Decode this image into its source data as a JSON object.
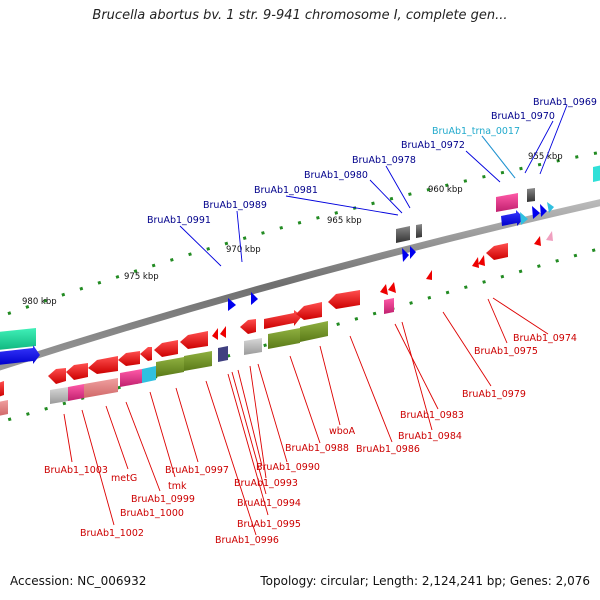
{
  "title": "Brucella abortus bv. 1 str. 9-941 chromosome I, complete gen...",
  "footer": {
    "accession": "Accession: NC_006932",
    "summary": "Topology: circular; Length: 2,124,241 bp; Genes: 2,076"
  },
  "tick_labels": [
    {
      "text": "955 kbp"
    },
    {
      "text": "960 kbp"
    },
    {
      "text": "965 kbp"
    },
    {
      "text": "970 kbp"
    },
    {
      "text": "975 kbp"
    },
    {
      "text": "980 kbp"
    }
  ],
  "gene_labels_top": [
    {
      "text": "BruAb1_0969",
      "color": "#00008b"
    },
    {
      "text": "BruAb1_0970",
      "color": "#00008b"
    },
    {
      "text": "BruAb1_trna_0017",
      "color": "#22aacc"
    },
    {
      "text": "BruAb1_0972",
      "color": "#00008b"
    },
    {
      "text": "BruAb1_0978",
      "color": "#00008b"
    },
    {
      "text": "BruAb1_0980",
      "color": "#00008b"
    },
    {
      "text": "BruAb1_0981",
      "color": "#00008b"
    },
    {
      "text": "BruAb1_0989",
      "color": "#00008b"
    },
    {
      "text": "BruAb1_0991",
      "color": "#00008b"
    }
  ],
  "gene_labels_bottom": [
    {
      "text": "BruAb1_0974",
      "color": "#cc0000"
    },
    {
      "text": "BruAb1_0975",
      "color": "#cc0000"
    },
    {
      "text": "BruAb1_0979",
      "color": "#cc0000"
    },
    {
      "text": "BruAb1_0983",
      "color": "#cc0000"
    },
    {
      "text": "BruAb1_0984",
      "color": "#cc0000"
    },
    {
      "text": "BruAb1_0986",
      "color": "#cc0000"
    },
    {
      "text": "wboA",
      "color": "#cc0000"
    },
    {
      "text": "BruAb1_0988",
      "color": "#cc0000"
    },
    {
      "text": "BruAb1_0990",
      "color": "#cc0000"
    },
    {
      "text": "BruAb1_0993",
      "color": "#cc0000"
    },
    {
      "text": "BruAb1_0994",
      "color": "#cc0000"
    },
    {
      "text": "BruAb1_0995",
      "color": "#cc0000"
    },
    {
      "text": "BruAb1_0996",
      "color": "#cc0000"
    },
    {
      "text": "BruAb1_0997",
      "color": "#cc0000"
    },
    {
      "text": "tmk",
      "color": "#cc0000"
    },
    {
      "text": "BruAb1_0999",
      "color": "#cc0000"
    },
    {
      "text": "BruAb1_1000",
      "color": "#cc0000"
    },
    {
      "text": "metG",
      "color": "#cc0000"
    },
    {
      "text": "BruAb1_1002",
      "color": "#cc0000"
    },
    {
      "text": "BruAb1_1003",
      "color": "#cc0000"
    }
  ],
  "colors": {
    "backbone": "#7a7a7a",
    "forward_strand": "#0000ee",
    "reverse_strand": "#ee0000",
    "tick": "#228b22",
    "olive": "#6b8e23",
    "magenta": "#e0338a",
    "teal": "#20d6a0",
    "cyan": "#30c0e0",
    "grey": "#b0b0b0",
    "dark_grey": "#555555"
  }
}
